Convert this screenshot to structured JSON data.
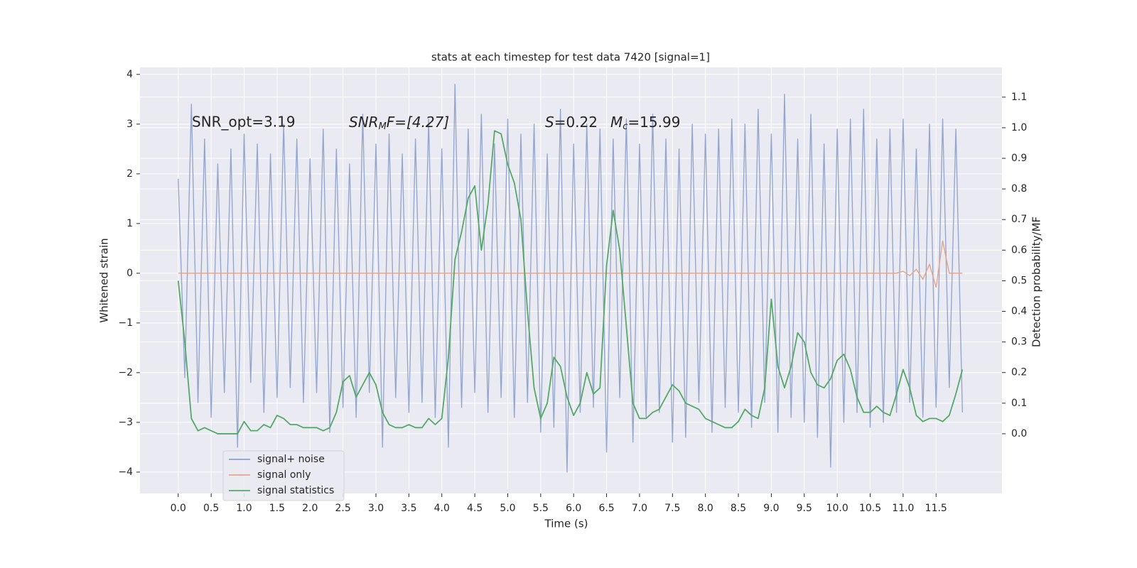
{
  "chart_data": {
    "type": "line",
    "title": "stats at each timestep for test data 7420 [signal=1]",
    "xlabel": "Time (s)",
    "ylabel": "Whitened strain",
    "y2label": "Detection probability/MF",
    "annotations": [
      [
        "SNR_opt=3.19"
      ],
      [
        "SNR",
        "M",
        "F=[4.27]"
      ],
      [
        "S",
        "=0.22"
      ],
      [
        "M",
        "c",
        "=15.99"
      ]
    ],
    "grid": true,
    "legend": "lower left",
    "xlim": [
      -0.58,
      12.5
    ],
    "ylim": [
      -4.43,
      4.14
    ],
    "y2lim": [
      -0.195,
      1.197
    ],
    "xticks": [
      {
        "value": 0,
        "label": "0.0"
      },
      0.5,
      {
        "value": 1,
        "label": "1.0"
      },
      1.5,
      {
        "value": 2,
        "label": "2.0"
      },
      2.5,
      {
        "value": 3,
        "label": "3.0"
      },
      3.5,
      {
        "value": 4,
        "label": "4.0"
      },
      4.5,
      {
        "value": 5,
        "label": "5.0"
      },
      5.5,
      {
        "value": 6,
        "label": "6.0"
      },
      6.5,
      {
        "value": 7,
        "label": "7.0"
      },
      7.5,
      {
        "value": 8,
        "label": "8.0"
      },
      8.5,
      {
        "value": 9,
        "label": "9.0"
      },
      9.5,
      {
        "value": 10,
        "label": "10.0"
      },
      10.5,
      {
        "value": 11,
        "label": "11.0"
      },
      11.5
    ],
    "yticks": [
      {
        "value": -4,
        "label": "−4"
      },
      {
        "value": -3,
        "label": "−3"
      },
      {
        "value": -2,
        "label": "−2"
      },
      {
        "value": -1,
        "label": "−1"
      },
      0,
      1,
      2,
      3,
      4
    ],
    "y2ticks": [
      {
        "value": 0,
        "label": "0.0"
      },
      0.1,
      0.2,
      0.3,
      0.4,
      0.5,
      0.6,
      0.7,
      0.8,
      0.9,
      {
        "value": 1,
        "label": "1.0"
      },
      1.1
    ],
    "x": [
      0,
      0.1,
      0.2,
      0.3,
      0.4,
      0.5,
      0.6,
      0.7,
      0.8,
      0.9,
      1,
      1.1,
      1.2,
      1.3,
      1.4,
      1.5,
      1.6,
      1.7,
      1.8,
      1.9,
      2,
      2.1,
      2.2,
      2.3,
      2.4,
      2.5,
      2.6,
      2.7,
      2.8,
      2.9,
      3,
      3.1,
      3.2,
      3.3,
      3.4,
      3.5,
      3.6,
      3.7,
      3.8,
      3.9,
      4,
      4.1,
      4.2,
      4.3,
      4.4,
      4.5,
      4.6,
      4.7,
      4.8,
      4.9,
      5,
      5.1,
      5.2,
      5.3,
      5.4,
      5.5,
      5.6,
      5.7,
      5.8,
      5.9,
      6,
      6.1,
      6.2,
      6.3,
      6.4,
      6.5,
      6.6,
      6.7,
      6.8,
      6.9,
      7,
      7.1,
      7.2,
      7.3,
      7.4,
      7.5,
      7.6,
      7.7,
      7.8,
      7.9,
      8,
      8.1,
      8.2,
      8.3,
      8.4,
      8.5,
      8.6,
      8.7,
      8.8,
      8.9,
      9,
      9.1,
      9.2,
      9.3,
      9.4,
      9.5,
      9.6,
      9.7,
      9.8,
      9.9,
      10,
      10.1,
      10.2,
      10.3,
      10.4,
      10.5,
      10.6,
      10.7,
      10.8,
      10.9,
      11,
      11.1,
      11.2,
      11.3,
      11.4,
      11.5,
      11.6,
      11.7,
      11.8,
      11.9
    ],
    "series": [
      {
        "name": "signal+ noise",
        "color": "#8da0cb",
        "axis": "y",
        "values": [
          1.9,
          -2.1,
          3.4,
          -2.6,
          2.7,
          -2.9,
          2.2,
          -2.4,
          2.5,
          -3.5,
          2.8,
          -2.2,
          2.6,
          -2.8,
          2.4,
          -2.5,
          3.0,
          -2.3,
          2.7,
          -2.6,
          2.3,
          -2.4,
          2.9,
          -3.2,
          2.5,
          -2.7,
          2.2,
          -2.9,
          3.2,
          -2.4,
          2.6,
          -3.5,
          2.8,
          -2.5,
          2.4,
          -2.8,
          2.7,
          -2.6,
          3.1,
          -2.9,
          2.5,
          -3.5,
          3.8,
          -2.7,
          2.9,
          -2.4,
          3.2,
          -2.8,
          2.6,
          -2.5,
          3.1,
          -2.9,
          2.8,
          -2.6,
          3.0,
          -3.2,
          2.4,
          -3.1,
          3.3,
          -4.0,
          2.6,
          -2.8,
          3.0,
          -2.7,
          2.9,
          -3.6,
          2.7,
          -2.5,
          3.1,
          -3.4,
          2.6,
          -2.9,
          3.2,
          -2.8,
          2.7,
          -3.4,
          2.5,
          -3.3,
          3.0,
          -2.6,
          2.8,
          -3.2,
          2.9,
          -2.7,
          3.1,
          -2.8,
          3.0,
          -3.1,
          3.3,
          -2.6,
          2.8,
          -3.2,
          3.6,
          -2.9,
          2.7,
          -3.0,
          3.2,
          -3.3,
          2.6,
          -3.9,
          2.9,
          -3.0,
          3.1,
          -2.8,
          3.3,
          -3.1,
          2.7,
          -3.0,
          2.9,
          -2.8,
          3.1,
          -2.6,
          2.5,
          -2.9,
          3.0,
          -2.7,
          3.1,
          -2.3,
          2.9,
          -2.8
        ]
      },
      {
        "name": "signal only",
        "color": "#e8a486",
        "axis": "y",
        "values": [
          0,
          0,
          0,
          0,
          0,
          0,
          0,
          0,
          0,
          0,
          0,
          0,
          0,
          0,
          0,
          0,
          0,
          0,
          0,
          0,
          0,
          0,
          0,
          0,
          0,
          0,
          0,
          0,
          0,
          0,
          0,
          0,
          0,
          0,
          0,
          0,
          0,
          0,
          0,
          0,
          0,
          0,
          0,
          0,
          0,
          0,
          0,
          0,
          0,
          0,
          0,
          0,
          0,
          0,
          0,
          0,
          0,
          0,
          0,
          0,
          0,
          0,
          0,
          0,
          0,
          0,
          0,
          0,
          0,
          0,
          0,
          0,
          0,
          0,
          0,
          0,
          0,
          0,
          0,
          0,
          0,
          0,
          0,
          0,
          0,
          0,
          0,
          0,
          0,
          0,
          0,
          0,
          0,
          0,
          0,
          0,
          0,
          0,
          0,
          0,
          0,
          0,
          0,
          0,
          0,
          0,
          0,
          0,
          0,
          0,
          0.04,
          -0.05,
          0.08,
          -0.12,
          0.18,
          -0.28,
          0.65,
          0,
          0,
          0
        ]
      },
      {
        "name": "signal statistics",
        "color": "#55a868",
        "axis": "y2",
        "values": [
          0.5,
          0.3,
          0.05,
          0.01,
          0.02,
          0.01,
          0.0,
          0.0,
          0.0,
          0.0,
          0.04,
          0.01,
          0.01,
          0.03,
          0.02,
          0.06,
          0.05,
          0.03,
          0.03,
          0.02,
          0.02,
          0.02,
          0.01,
          0.02,
          0.07,
          0.17,
          0.19,
          0.12,
          0.16,
          0.2,
          0.16,
          0.07,
          0.03,
          0.02,
          0.02,
          0.03,
          0.02,
          0.02,
          0.05,
          0.03,
          0.05,
          0.25,
          0.57,
          0.66,
          0.77,
          0.81,
          0.6,
          0.75,
          0.99,
          0.98,
          0.88,
          0.82,
          0.7,
          0.4,
          0.15,
          0.05,
          0.1,
          0.25,
          0.22,
          0.12,
          0.06,
          0.1,
          0.2,
          0.13,
          0.15,
          0.55,
          0.73,
          0.6,
          0.35,
          0.1,
          0.05,
          0.05,
          0.07,
          0.08,
          0.12,
          0.16,
          0.14,
          0.1,
          0.09,
          0.08,
          0.05,
          0.04,
          0.03,
          0.02,
          0.02,
          0.04,
          0.08,
          0.06,
          0.05,
          0.15,
          0.44,
          0.22,
          0.15,
          0.22,
          0.33,
          0.3,
          0.2,
          0.16,
          0.15,
          0.18,
          0.24,
          0.26,
          0.21,
          0.12,
          0.07,
          0.07,
          0.09,
          0.07,
          0.06,
          0.13,
          0.21,
          0.15,
          0.06,
          0.04,
          0.05,
          0.05,
          0.04,
          0.06,
          0.13,
          0.21
        ]
      }
    ]
  }
}
